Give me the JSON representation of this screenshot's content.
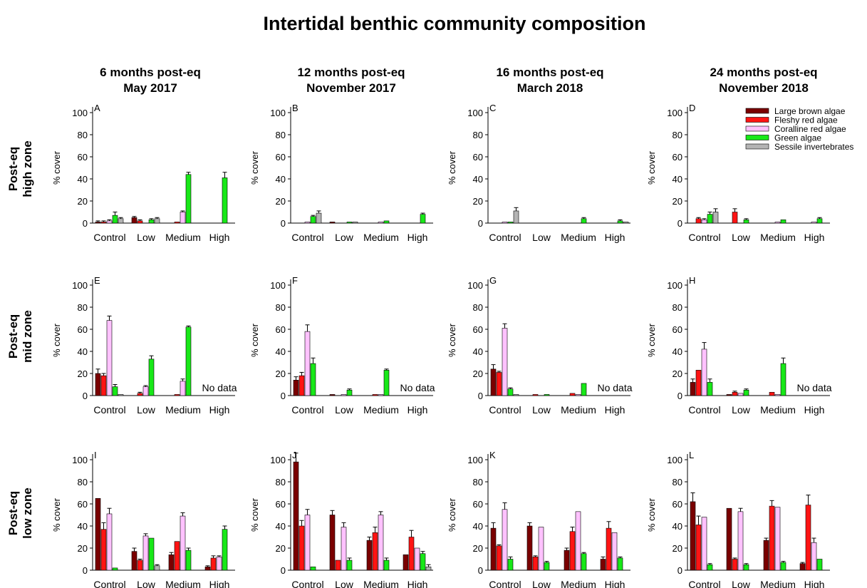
{
  "figure": {
    "title": "Intertidal benthic community composition",
    "columns": [
      {
        "line1": "6 months post-eq",
        "line2": "May 2017"
      },
      {
        "line1": "12 months post-eq",
        "line2": "November 2017"
      },
      {
        "line1": "16 months post-eq",
        "line2": "March 2018"
      },
      {
        "line1": "24 months post-eq",
        "line2": "November 2018"
      }
    ],
    "rows": [
      {
        "line1": "Post-eq",
        "line2": "high zone"
      },
      {
        "line1": "Post-eq",
        "line2": "mid zone"
      },
      {
        "line1": "Post-eq",
        "line2": "low zone"
      }
    ],
    "no_data_label": "No data",
    "colors": {
      "Large brown algae": "#7a0000",
      "Fleshy red algae": "#ff1414",
      "Coralline red algae": "#ffc2ff",
      "Green algae": "#18e818",
      "Sessile invertebrates": "#b4b4b4"
    }
  },
  "chart_data": [
    {
      "type": "bar",
      "panel": "A",
      "ylabel": "% cover",
      "ylim": [
        0,
        100
      ],
      "yticks": [
        0,
        20,
        40,
        60,
        80,
        100
      ],
      "categories": [
        "Control",
        "Low",
        "Medium",
        "High"
      ],
      "legend_position": "none",
      "series": [
        {
          "name": "Large brown algae",
          "values": [
            1,
            5,
            0,
            0
          ]
        },
        {
          "name": "Fleshy red algae",
          "values": [
            1,
            2,
            1,
            0
          ]
        },
        {
          "name": "Coralline red algae",
          "values": [
            2,
            0,
            10,
            0
          ]
        },
        {
          "name": "Green algae",
          "values": [
            7,
            3,
            44,
            41
          ]
        },
        {
          "name": "Sessile invertebrates",
          "values": [
            4,
            4,
            0,
            0
          ]
        }
      ],
      "errors": [
        [
          1,
          1,
          0,
          0
        ],
        [
          1,
          1,
          0,
          0
        ],
        [
          1,
          0,
          1,
          0
        ],
        [
          3,
          1,
          2,
          5
        ],
        [
          1,
          1,
          0,
          0
        ]
      ]
    },
    {
      "type": "bar",
      "panel": "B",
      "ylabel": "% cover",
      "ylim": [
        0,
        100
      ],
      "yticks": [
        0,
        20,
        40,
        60,
        80,
        100
      ],
      "categories": [
        "Control",
        "Low",
        "Medium",
        "High"
      ],
      "legend_position": "none",
      "series": [
        {
          "name": "Large brown algae",
          "values": [
            0,
            1,
            0,
            0
          ]
        },
        {
          "name": "Fleshy red algae",
          "values": [
            0,
            0,
            0,
            0
          ]
        },
        {
          "name": "Coralline red algae",
          "values": [
            1,
            0,
            1,
            0
          ]
        },
        {
          "name": "Green algae",
          "values": [
            6,
            1,
            2,
            8
          ]
        },
        {
          "name": "Sessile invertebrates",
          "values": [
            9,
            1,
            0,
            0
          ]
        }
      ],
      "errors": [
        [
          0,
          0,
          0,
          0
        ],
        [
          0,
          0,
          0,
          0
        ],
        [
          0,
          0,
          0,
          0
        ],
        [
          1,
          0,
          0,
          1
        ],
        [
          2,
          0,
          0,
          0
        ]
      ]
    },
    {
      "type": "bar",
      "panel": "C",
      "ylabel": "% cover",
      "ylim": [
        0,
        100
      ],
      "yticks": [
        0,
        20,
        40,
        60,
        80,
        100
      ],
      "categories": [
        "Control",
        "Low",
        "Medium",
        "High"
      ],
      "legend_position": "none",
      "series": [
        {
          "name": "Large brown algae",
          "values": [
            0,
            0,
            0,
            0
          ]
        },
        {
          "name": "Fleshy red algae",
          "values": [
            0,
            0,
            0,
            0
          ]
        },
        {
          "name": "Coralline red algae",
          "values": [
            1,
            0,
            0,
            0
          ]
        },
        {
          "name": "Green algae",
          "values": [
            1,
            0,
            4,
            2
          ]
        },
        {
          "name": "Sessile invertebrates",
          "values": [
            11,
            0,
            0,
            1
          ]
        }
      ],
      "errors": [
        [
          0,
          0,
          0,
          0
        ],
        [
          0,
          0,
          0,
          0
        ],
        [
          0,
          0,
          0,
          0
        ],
        [
          0,
          0,
          1,
          1
        ],
        [
          3,
          0,
          0,
          0
        ]
      ]
    },
    {
      "type": "bar",
      "panel": "D",
      "ylabel": "% cover",
      "ylim": [
        0,
        100
      ],
      "yticks": [
        0,
        20,
        40,
        60,
        80,
        100
      ],
      "categories": [
        "Control",
        "Low",
        "Medium",
        "High"
      ],
      "legend_position": "top-right",
      "series": [
        {
          "name": "Large brown algae",
          "values": [
            0,
            0,
            0,
            0
          ]
        },
        {
          "name": "Fleshy red algae",
          "values": [
            4,
            10,
            0,
            0
          ]
        },
        {
          "name": "Coralline red algae",
          "values": [
            3,
            0,
            1,
            1
          ]
        },
        {
          "name": "Green algae",
          "values": [
            8,
            3,
            3,
            4
          ]
        },
        {
          "name": "Sessile invertebrates",
          "values": [
            10,
            0,
            0,
            0
          ]
        }
      ],
      "errors": [
        [
          0,
          0,
          0,
          0
        ],
        [
          1,
          3,
          0,
          0
        ],
        [
          1,
          0,
          0,
          0
        ],
        [
          2,
          1,
          0,
          1
        ],
        [
          3,
          0,
          0,
          0
        ]
      ]
    },
    {
      "type": "bar",
      "panel": "E",
      "ylabel": "% cover",
      "ylim": [
        0,
        100
      ],
      "yticks": [
        0,
        20,
        40,
        60,
        80,
        100
      ],
      "categories": [
        "Control",
        "Low",
        "Medium",
        "High"
      ],
      "legend_position": "none",
      "no_data_category": "High",
      "series": [
        {
          "name": "Large brown algae",
          "values": [
            20,
            0,
            0,
            null
          ]
        },
        {
          "name": "Fleshy red algae",
          "values": [
            18,
            2,
            1,
            null
          ]
        },
        {
          "name": "Coralline red algae",
          "values": [
            68,
            8,
            13,
            null
          ]
        },
        {
          "name": "Green algae",
          "values": [
            8,
            33,
            62,
            null
          ]
        },
        {
          "name": "Sessile invertebrates",
          "values": [
            1,
            0,
            0,
            null
          ]
        }
      ],
      "errors": [
        [
          4,
          0,
          0,
          0
        ],
        [
          2,
          1,
          0,
          0
        ],
        [
          4,
          1,
          2,
          0
        ],
        [
          2,
          3,
          1,
          0
        ],
        [
          0,
          0,
          0,
          0
        ]
      ]
    },
    {
      "type": "bar",
      "panel": "F",
      "ylabel": "% cover",
      "ylim": [
        0,
        100
      ],
      "yticks": [
        0,
        20,
        40,
        60,
        80,
        100
      ],
      "categories": [
        "Control",
        "Low",
        "Medium",
        "High"
      ],
      "legend_position": "none",
      "no_data_category": "High",
      "series": [
        {
          "name": "Large brown algae",
          "values": [
            14,
            1,
            0,
            null
          ]
        },
        {
          "name": "Fleshy red algae",
          "values": [
            18,
            0,
            1,
            null
          ]
        },
        {
          "name": "Coralline red algae",
          "values": [
            58,
            1,
            1,
            null
          ]
        },
        {
          "name": "Green algae",
          "values": [
            29,
            5,
            23,
            null
          ]
        },
        {
          "name": "Sessile invertebrates",
          "values": [
            0,
            0,
            0,
            null
          ]
        }
      ],
      "errors": [
        [
          3,
          0,
          0,
          0
        ],
        [
          3,
          0,
          0,
          0
        ],
        [
          6,
          0,
          0,
          0
        ],
        [
          5,
          1,
          1,
          0
        ],
        [
          0,
          0,
          0,
          0
        ]
      ]
    },
    {
      "type": "bar",
      "panel": "G",
      "ylabel": "% cover",
      "ylim": [
        0,
        100
      ],
      "yticks": [
        0,
        20,
        40,
        60,
        80,
        100
      ],
      "categories": [
        "Control",
        "Low",
        "Medium",
        "High"
      ],
      "legend_position": "none",
      "no_data_category": "High",
      "series": [
        {
          "name": "Large brown algae",
          "values": [
            24,
            0,
            0,
            null
          ]
        },
        {
          "name": "Fleshy red algae",
          "values": [
            21,
            1,
            2,
            null
          ]
        },
        {
          "name": "Coralline red algae",
          "values": [
            61,
            0,
            1,
            null
          ]
        },
        {
          "name": "Green algae",
          "values": [
            6,
            1,
            11,
            null
          ]
        },
        {
          "name": "Sessile invertebrates",
          "values": [
            1,
            0,
            0,
            null
          ]
        }
      ],
      "errors": [
        [
          4,
          0,
          0,
          0
        ],
        [
          1,
          0,
          0,
          0
        ],
        [
          4,
          0,
          0,
          0
        ],
        [
          1,
          0,
          0,
          0
        ],
        [
          0,
          0,
          0,
          0
        ]
      ]
    },
    {
      "type": "bar",
      "panel": "H",
      "ylabel": "% cover",
      "ylim": [
        0,
        100
      ],
      "yticks": [
        0,
        20,
        40,
        60,
        80,
        100
      ],
      "categories": [
        "Control",
        "Low",
        "Medium",
        "High"
      ],
      "legend_position": "none",
      "no_data_category": "High",
      "series": [
        {
          "name": "Large brown algae",
          "values": [
            12,
            1,
            0,
            null
          ]
        },
        {
          "name": "Fleshy red algae",
          "values": [
            23,
            3,
            3,
            null
          ]
        },
        {
          "name": "Coralline red algae",
          "values": [
            42,
            2,
            1,
            null
          ]
        },
        {
          "name": "Green algae",
          "values": [
            12,
            5,
            29,
            null
          ]
        },
        {
          "name": "Sessile invertebrates",
          "values": [
            0,
            0,
            0,
            null
          ]
        }
      ],
      "errors": [
        [
          3,
          0,
          0,
          0
        ],
        [
          0,
          1,
          0,
          0
        ],
        [
          6,
          0,
          0,
          0
        ],
        [
          3,
          1,
          5,
          0
        ],
        [
          0,
          0,
          0,
          0
        ]
      ]
    },
    {
      "type": "bar",
      "panel": "I",
      "ylabel": "% cover",
      "ylim": [
        0,
        100
      ],
      "yticks": [
        0,
        20,
        40,
        60,
        80,
        100
      ],
      "categories": [
        "Control",
        "Low",
        "Medium",
        "High"
      ],
      "legend_position": "none",
      "series": [
        {
          "name": "Large brown algae",
          "values": [
            65,
            17,
            14,
            3
          ]
        },
        {
          "name": "Fleshy red algae",
          "values": [
            37,
            9,
            26,
            11
          ]
        },
        {
          "name": "Coralline red algae",
          "values": [
            51,
            31,
            49,
            12
          ]
        },
        {
          "name": "Green algae",
          "values": [
            2,
            29,
            18,
            37
          ]
        },
        {
          "name": "Sessile invertebrates",
          "values": [
            0,
            4,
            0,
            0
          ]
        }
      ],
      "errors": [
        [
          0,
          3,
          2,
          1
        ],
        [
          6,
          1,
          0,
          2
        ],
        [
          5,
          2,
          3,
          1
        ],
        [
          0,
          0,
          2,
          3
        ],
        [
          0,
          1,
          0,
          0
        ]
      ]
    },
    {
      "type": "bar",
      "panel": "J",
      "ylabel": "% cover",
      "ylim": [
        0,
        100
      ],
      "yticks": [
        0,
        20,
        40,
        60,
        80,
        100
      ],
      "categories": [
        "Control",
        "Low",
        "Medium",
        "High"
      ],
      "legend_position": "none",
      "series": [
        {
          "name": "Large brown algae",
          "values": [
            98,
            50,
            27,
            14
          ]
        },
        {
          "name": "Fleshy red algae",
          "values": [
            40,
            9,
            34,
            30
          ]
        },
        {
          "name": "Coralline red algae",
          "values": [
            50,
            39,
            50,
            20
          ]
        },
        {
          "name": "Green algae",
          "values": [
            3,
            9,
            9,
            15
          ]
        },
        {
          "name": "Sessile invertebrates",
          "values": [
            0,
            0,
            0,
            3
          ]
        }
      ],
      "errors": [
        [
          8,
          4,
          3,
          0
        ],
        [
          5,
          0,
          5,
          6
        ],
        [
          5,
          4,
          3,
          0
        ],
        [
          0,
          2,
          2,
          2
        ],
        [
          0,
          0,
          0,
          2
        ]
      ]
    },
    {
      "type": "bar",
      "panel": "K",
      "ylabel": "% cover",
      "ylim": [
        0,
        100
      ],
      "yticks": [
        0,
        20,
        40,
        60,
        80,
        100
      ],
      "categories": [
        "Control",
        "Low",
        "Medium",
        "High"
      ],
      "legend_position": "none",
      "series": [
        {
          "name": "Large brown algae",
          "values": [
            38,
            40,
            18,
            10
          ]
        },
        {
          "name": "Fleshy red algae",
          "values": [
            22,
            12,
            35,
            38
          ]
        },
        {
          "name": "Coralline red algae",
          "values": [
            55,
            39,
            53,
            34
          ]
        },
        {
          "name": "Green algae",
          "values": [
            10,
            7,
            15,
            11
          ]
        },
        {
          "name": "Sessile invertebrates",
          "values": [
            0,
            0,
            0,
            0
          ]
        }
      ],
      "errors": [
        [
          5,
          3,
          2,
          2
        ],
        [
          1,
          1,
          4,
          6
        ],
        [
          6,
          0,
          0,
          0
        ],
        [
          2,
          1,
          1,
          1
        ],
        [
          0,
          0,
          0,
          0
        ]
      ]
    },
    {
      "type": "bar",
      "panel": "L",
      "ylabel": "% cover",
      "ylim": [
        0,
        100
      ],
      "yticks": [
        0,
        20,
        40,
        60,
        80,
        100
      ],
      "categories": [
        "Control",
        "Low",
        "Medium",
        "High"
      ],
      "legend_position": "none",
      "series": [
        {
          "name": "Large brown algae",
          "values": [
            62,
            56,
            27,
            6
          ]
        },
        {
          "name": "Fleshy red algae",
          "values": [
            41,
            10,
            58,
            59
          ]
        },
        {
          "name": "Coralline red algae",
          "values": [
            48,
            53,
            57,
            25
          ]
        },
        {
          "name": "Green algae",
          "values": [
            5,
            5,
            7,
            10
          ]
        },
        {
          "name": "Sessile invertebrates",
          "values": [
            0,
            0,
            0,
            0
          ]
        }
      ],
      "errors": [
        [
          8,
          0,
          2,
          1
        ],
        [
          8,
          1,
          5,
          9
        ],
        [
          0,
          3,
          0,
          4
        ],
        [
          1,
          1,
          1,
          0
        ],
        [
          0,
          0,
          0,
          0
        ]
      ]
    }
  ]
}
